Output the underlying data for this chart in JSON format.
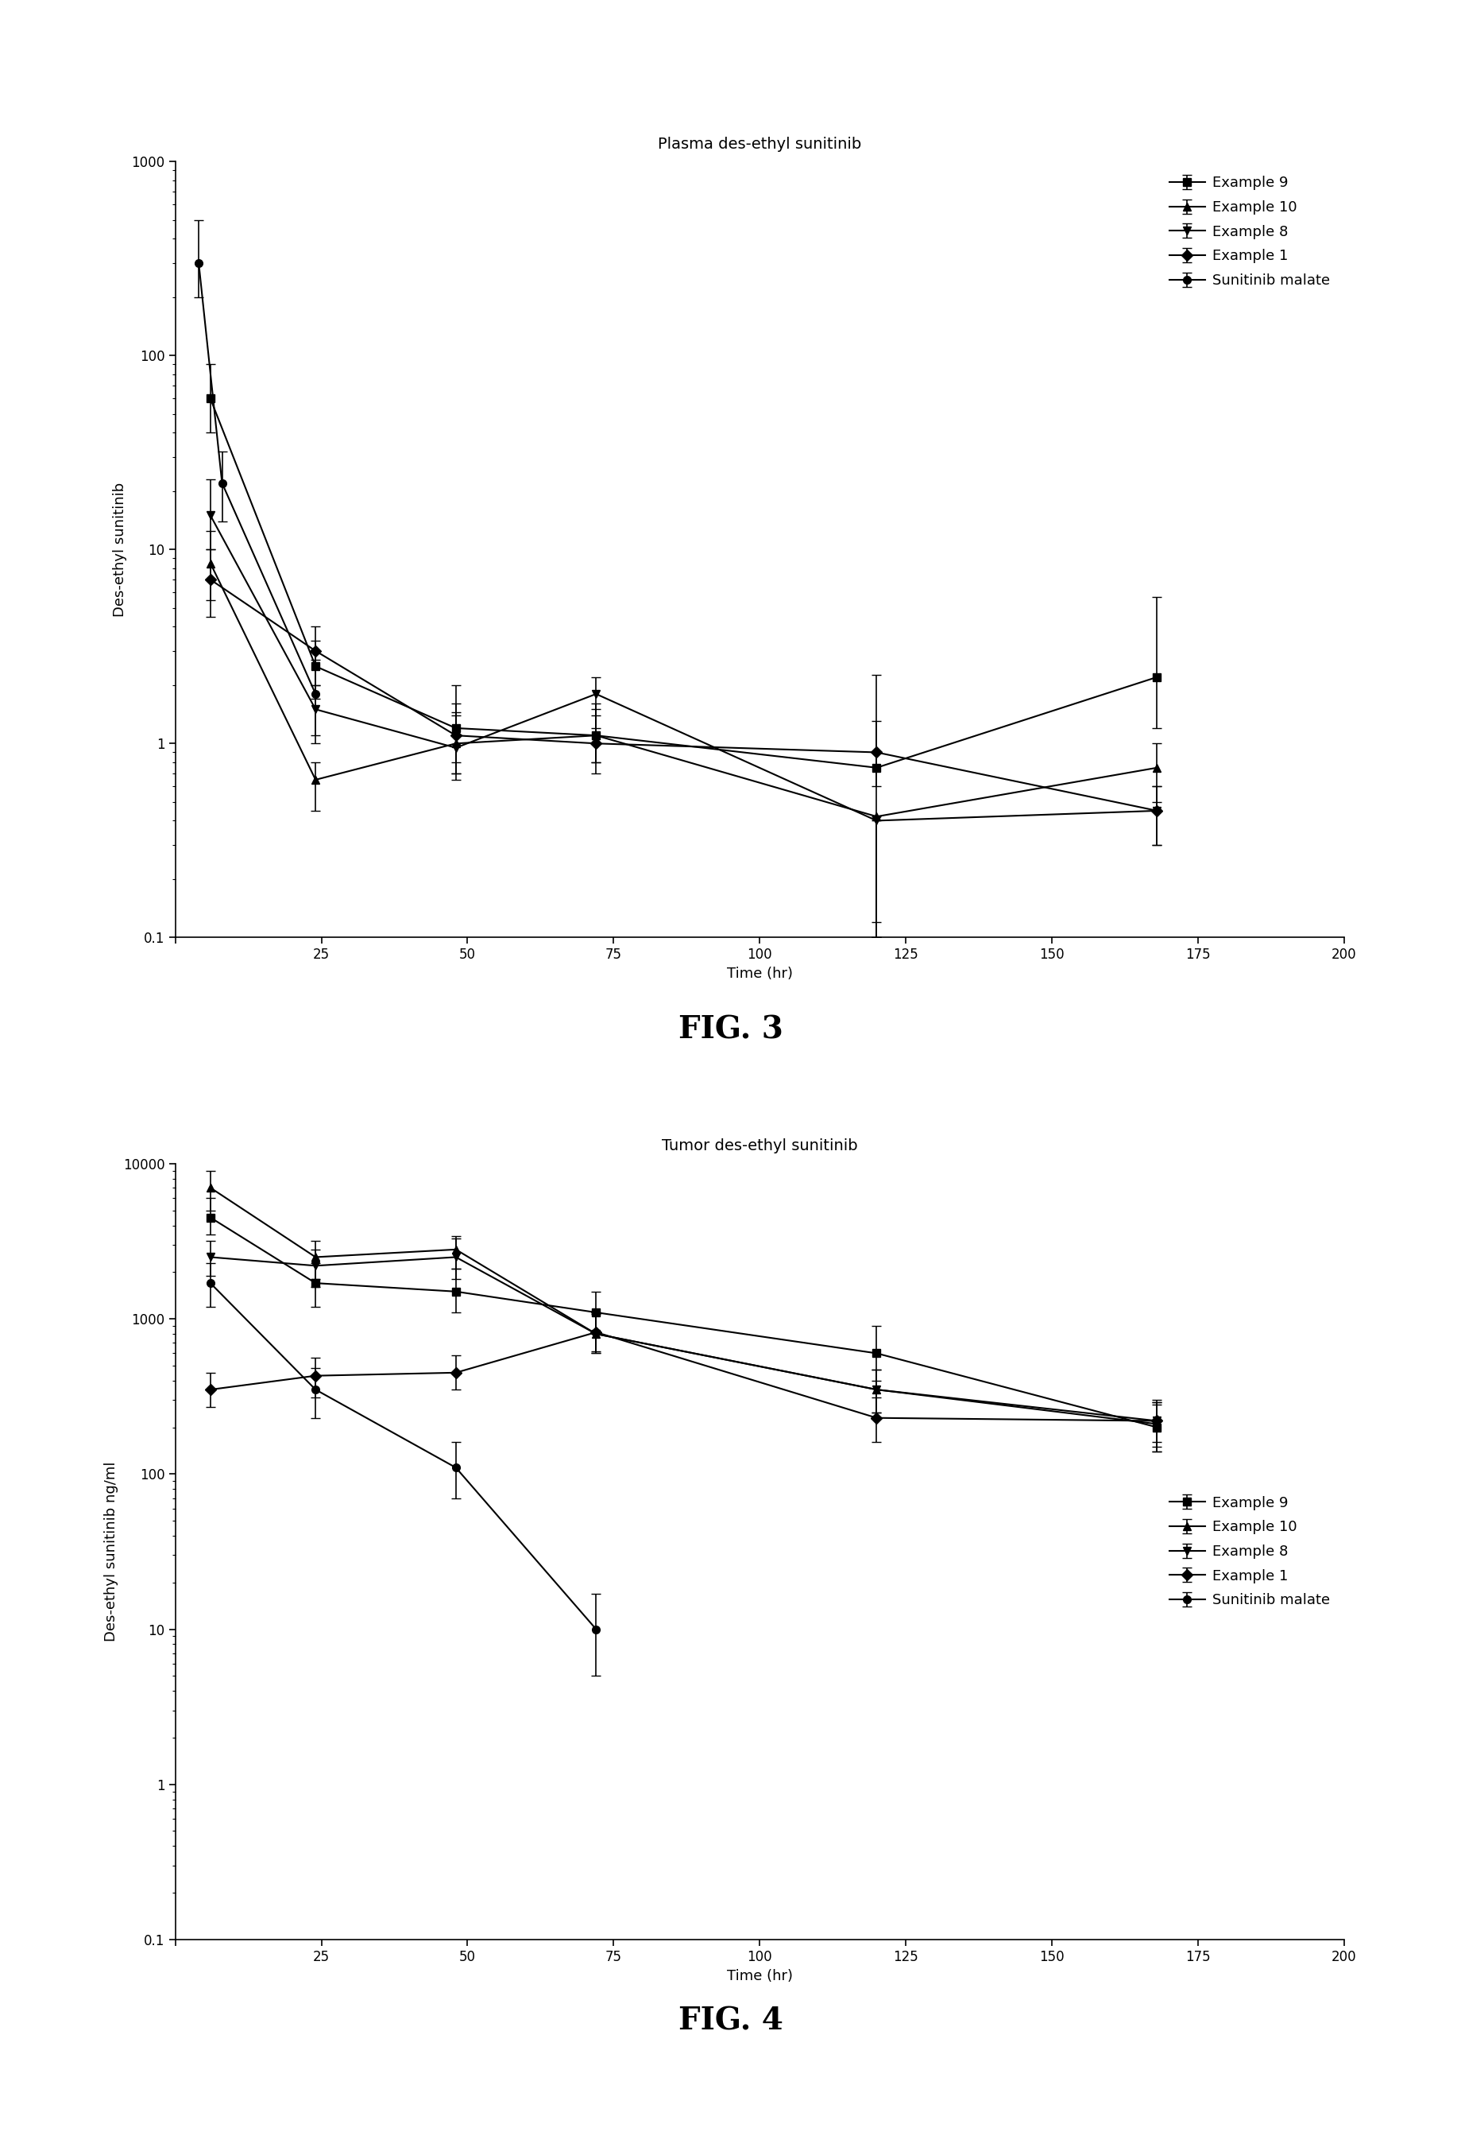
{
  "fig3": {
    "title": "Plasma des-ethyl sunitinib",
    "ylabel": "Des-ethyl sunitinib",
    "xlabel": "Time (hr)",
    "fignum": "FIG. 3",
    "xlim": [
      0,
      200
    ],
    "ylim": [
      0.1,
      1000
    ],
    "xticks": [
      0,
      25,
      50,
      75,
      100,
      125,
      150,
      175,
      200
    ],
    "yticks": [
      0.1,
      1,
      10,
      100,
      1000
    ],
    "ytick_labels": [
      "0.1",
      "1",
      "10",
      "100",
      "1000"
    ],
    "legend_loc": "upper right",
    "series": {
      "Example 9": {
        "x": [
          6,
          24,
          48,
          72,
          120,
          168
        ],
        "y": [
          60,
          2.5,
          1.2,
          1.1,
          0.75,
          2.2
        ],
        "yerr_lo": [
          20,
          0.8,
          0.4,
          0.3,
          0.65,
          1.0
        ],
        "yerr_hi": [
          30,
          0.9,
          0.8,
          0.5,
          1.5,
          3.5
        ],
        "marker": "s"
      },
      "Example 10": {
        "x": [
          6,
          24,
          48,
          72,
          120,
          168
        ],
        "y": [
          8.5,
          0.65,
          1.0,
          1.1,
          0.42,
          0.75
        ],
        "yerr_lo": [
          3.0,
          0.2,
          0.3,
          0.3,
          0.3,
          0.25
        ],
        "yerr_hi": [
          4.0,
          0.15,
          0.4,
          0.4,
          0.0,
          0.25
        ],
        "marker": "^"
      },
      "Example 8": {
        "x": [
          6,
          24,
          48,
          72,
          120,
          168
        ],
        "y": [
          15,
          1.5,
          0.95,
          1.8,
          0.4,
          0.45
        ],
        "yerr_lo": [
          5,
          0.5,
          0.3,
          0.6,
          0.3,
          0.15
        ],
        "yerr_hi": [
          8,
          0.5,
          0.5,
          0.4,
          0.0,
          0.15
        ],
        "marker": "v"
      },
      "Example 1": {
        "x": [
          6,
          24,
          48,
          72,
          120,
          168
        ],
        "y": [
          7.0,
          3.0,
          1.1,
          1.0,
          0.9,
          0.45
        ],
        "yerr_lo": [
          2.5,
          1.0,
          0.4,
          0.3,
          0.3,
          0.15
        ],
        "yerr_hi": [
          3.0,
          1.0,
          0.5,
          0.4,
          0.4,
          0.15
        ],
        "marker": "D"
      },
      "Sunitinib malate": {
        "x": [
          4,
          8,
          24
        ],
        "y": [
          300,
          22,
          1.8
        ],
        "yerr_lo": [
          100,
          8,
          0.7
        ],
        "yerr_hi": [
          200,
          10,
          0.9
        ],
        "marker": "o"
      }
    },
    "legend_order": [
      "Example 9",
      "Example 10",
      "Example 8",
      "Example 1",
      "Sunitinib malate"
    ]
  },
  "fig4": {
    "title": "Tumor des-ethyl sunitinib",
    "ylabel": "Des-ethyl sunitinib ng/ml",
    "xlabel": "Time (hr)",
    "fignum": "FIG. 4",
    "xlim": [
      0,
      200
    ],
    "ylim": [
      0.1,
      10000
    ],
    "xticks": [
      0,
      25,
      50,
      75,
      100,
      125,
      150,
      175,
      200
    ],
    "yticks": [
      0.1,
      1,
      10,
      100,
      1000,
      10000
    ],
    "ytick_labels": [
      "0.1",
      "1",
      "10",
      "100",
      "1000",
      "10000"
    ],
    "legend_loc": "center right",
    "series": {
      "Example 9": {
        "x": [
          6,
          24,
          48,
          72,
          120,
          168
        ],
        "y": [
          4500,
          1700,
          1500,
          1100,
          600,
          200
        ],
        "yerr_lo": [
          1000,
          500,
          400,
          300,
          200,
          60
        ],
        "yerr_hi": [
          1500,
          600,
          600,
          400,
          300,
          80
        ],
        "marker": "s"
      },
      "Example 10": {
        "x": [
          6,
          24,
          48,
          72,
          120,
          168
        ],
        "y": [
          7000,
          2500,
          2800,
          800,
          350,
          210
        ],
        "yerr_lo": [
          2000,
          700,
          700,
          200,
          100,
          70
        ],
        "yerr_hi": [
          2000,
          700,
          600,
          300,
          120,
          80
        ],
        "marker": "^"
      },
      "Example 8": {
        "x": [
          6,
          24,
          48,
          72,
          120,
          168
        ],
        "y": [
          2500,
          2200,
          2500,
          800,
          350,
          220
        ],
        "yerr_lo": [
          600,
          600,
          700,
          200,
          100,
          70
        ],
        "yerr_hi": [
          700,
          600,
          800,
          300,
          120,
          80
        ],
        "marker": "v"
      },
      "Example 1": {
        "x": [
          6,
          24,
          48,
          72,
          120,
          168
        ],
        "y": [
          350,
          430,
          450,
          820,
          230,
          220
        ],
        "yerr_lo": [
          80,
          120,
          100,
          200,
          70,
          60
        ],
        "yerr_hi": [
          100,
          130,
          130,
          250,
          80,
          70
        ],
        "marker": "D"
      },
      "Sunitinib malate": {
        "x": [
          6,
          24,
          48,
          72,
          120
        ],
        "y": [
          1700,
          350,
          110,
          10,
          null
        ],
        "yerr_lo": [
          500,
          120,
          40,
          5,
          null
        ],
        "yerr_hi": [
          600,
          130,
          50,
          7,
          null
        ],
        "marker": "o"
      }
    },
    "legend_order": [
      "Example 9",
      "Example 10",
      "Example 8",
      "Example 1",
      "Sunitinib malate"
    ]
  },
  "color": "#000000",
  "linewidth": 1.5,
  "markersize": 7,
  "capsize": 4,
  "title_fontsize": 14,
  "label_fontsize": 13,
  "tick_fontsize": 12,
  "legend_fontsize": 13,
  "fignum_fontsize": 28,
  "background_color": "#ffffff"
}
